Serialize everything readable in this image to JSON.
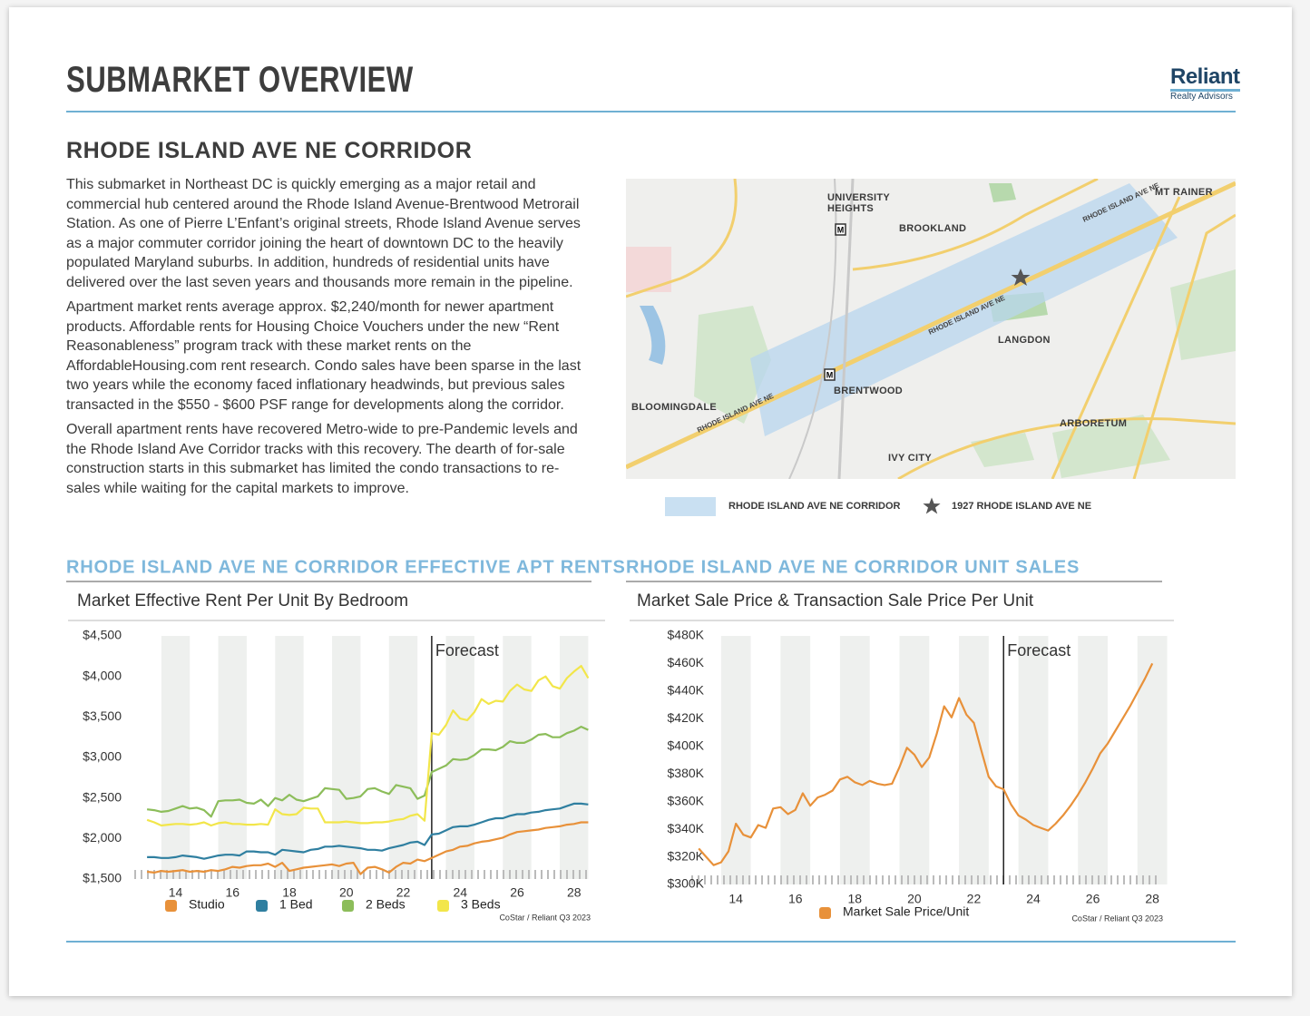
{
  "header": {
    "title": "SUBMARKET OVERVIEW",
    "logo": "Reliant",
    "logo_sub": "Realty Advisors"
  },
  "section": {
    "title": "RHODE ISLAND AVE NE CORRIDOR",
    "paragraphs": [
      "This submarket in Northeast DC is quickly emerging as a major retail and commercial hub centered around the Rhode Island Avenue-Brentwood Metrorail Station. As one of Pierre L’Enfant’s original streets, Rhode Island Avenue serves as a major commuter corridor joining the heart of downtown DC to the heavily populated Maryland suburbs. In addition, hundreds of residential units have delivered over the last seven years and thousands more remain in the pipeline.",
      "Apartment market rents average approx. $2,240/month for newer apartment products. Affordable rents for Housing Choice Vouchers under the new “Rent Reasonableness” program track with these market rents on the AffordableHousing.com rent research. Condo sales have been sparse in the last two years while the economy faced inflationary headwinds, but previous sales transacted in the $550 - $600 PSF range for developments along the corridor.",
      "Overall apartment rents have recovered Metro-wide to pre-Pandemic levels and the Rhode Island Ave Corridor tracks with this recovery. The dearth of for-sale construction starts in this submarket has limited the condo transactions to re-sales while waiting for the capital markets to improve."
    ]
  },
  "map": {
    "labels": [
      "UNIVERSITY HEIGHTS",
      "BROOKLAND",
      "MT RAINER",
      "LANGDON",
      "BRENTWOOD",
      "BLOOMINGDALE",
      "ARBORETUM",
      "IVY CITY"
    ],
    "road_labels": [
      "RHODE ISLAND AVE NE",
      "RHODE ISLAND AVE NE",
      "RHODE ISLAND AVE NE"
    ],
    "legend": [
      "RHODE ISLAND AVE NE CORRIDOR",
      "1927 RHODE ISLAND AVE NE"
    ]
  },
  "chart_data": [
    {
      "type": "line",
      "title": "RHODE ISLAND AVE NE CORRIDOR EFFECTIVE APT RENTS",
      "subtitle": "Market Effective Rent Per Unit By Bedroom",
      "annotation": {
        "text": "Forecast",
        "x": 23
      },
      "source": "CoStar / Reliant Q3 2023",
      "x_bands": true,
      "x": [
        13,
        13.25,
        13.5,
        13.75,
        14,
        14.25,
        14.5,
        14.75,
        15,
        15.25,
        15.5,
        15.75,
        16,
        16.25,
        16.5,
        16.75,
        17,
        17.25,
        17.5,
        17.75,
        18,
        18.25,
        18.5,
        18.75,
        19,
        19.25,
        19.5,
        19.75,
        20,
        20.25,
        20.5,
        20.75,
        21,
        21.25,
        21.5,
        21.75,
        22,
        22.25,
        22.5,
        22.75,
        23,
        23.25,
        23.5,
        23.75,
        24,
        24.25,
        24.5,
        24.75,
        25,
        25.25,
        25.5,
        25.75,
        26,
        26.25,
        26.5,
        26.75,
        27,
        27.25,
        27.5,
        27.75,
        28,
        28.25,
        28.5
      ],
      "series": [
        {
          "name": "Studio",
          "color": "#e8913a",
          "values": [
            1590,
            1580,
            1600,
            1590,
            1600,
            1610,
            1590,
            1600,
            1590,
            1610,
            1600,
            1620,
            1650,
            1640,
            1660,
            1670,
            1670,
            1690,
            1650,
            1700,
            1600,
            1620,
            1640,
            1650,
            1660,
            1670,
            1680,
            1660,
            1690,
            1700,
            1560,
            1640,
            1650,
            1620,
            1580,
            1650,
            1700,
            1690,
            1740,
            1720,
            1760,
            1800,
            1840,
            1860,
            1900,
            1910,
            1940,
            1960,
            1970,
            1990,
            2010,
            2050,
            2080,
            2090,
            2100,
            2110,
            2130,
            2140,
            2150,
            2170,
            2180,
            2200,
            2200
          ]
        },
        {
          "name": "1 Bed",
          "color": "#2f7fa0",
          "values": [
            1770,
            1770,
            1760,
            1760,
            1770,
            1790,
            1780,
            1770,
            1750,
            1770,
            1790,
            1800,
            1800,
            1790,
            1840,
            1840,
            1830,
            1830,
            1800,
            1860,
            1850,
            1840,
            1830,
            1860,
            1870,
            1900,
            1900,
            1910,
            1900,
            1890,
            1880,
            1860,
            1860,
            1850,
            1880,
            1900,
            1920,
            1950,
            1960,
            1920,
            2050,
            2060,
            2100,
            2140,
            2150,
            2150,
            2170,
            2200,
            2230,
            2250,
            2250,
            2280,
            2300,
            2300,
            2320,
            2330,
            2350,
            2360,
            2370,
            2400,
            2430,
            2430,
            2420
          ]
        },
        {
          "name": "2 Beds",
          "color": "#8cbd5a",
          "values": [
            2360,
            2350,
            2330,
            2340,
            2370,
            2400,
            2370,
            2380,
            2350,
            2270,
            2460,
            2470,
            2470,
            2480,
            2440,
            2430,
            2480,
            2400,
            2500,
            2470,
            2540,
            2480,
            2460,
            2490,
            2520,
            2620,
            2610,
            2600,
            2490,
            2500,
            2520,
            2610,
            2620,
            2580,
            2550,
            2660,
            2640,
            2620,
            2490,
            2530,
            2820,
            2860,
            2900,
            2980,
            2970,
            2980,
            3030,
            3100,
            3100,
            3090,
            3130,
            3200,
            3180,
            3180,
            3220,
            3280,
            3290,
            3250,
            3250,
            3300,
            3330,
            3380,
            3340
          ]
        },
        {
          "name": "3 Beds",
          "color": "#f2e64a",
          "values": [
            2230,
            2200,
            2160,
            2170,
            2180,
            2180,
            2170,
            2180,
            2200,
            2160,
            2190,
            2200,
            2180,
            2180,
            2170,
            2170,
            2180,
            2170,
            2360,
            2300,
            2290,
            2300,
            2380,
            2370,
            2370,
            2200,
            2200,
            2200,
            2210,
            2200,
            2190,
            2190,
            2200,
            2200,
            2210,
            2230,
            2240,
            2280,
            2300,
            2220,
            3300,
            3280,
            3400,
            3580,
            3480,
            3460,
            3560,
            3720,
            3660,
            3700,
            3690,
            3820,
            3900,
            3840,
            3820,
            3950,
            4000,
            3880,
            3850,
            3980,
            4060,
            4130,
            3980
          ]
        }
      ],
      "xlim": [
        12.55,
        28.55
      ],
      "xticks": [
        14,
        16,
        18,
        20,
        22,
        24,
        26,
        28
      ],
      "ylim": [
        1500,
        4500
      ],
      "yticks": [
        {
          "value": 1500,
          "label": "$1,500"
        },
        {
          "value": 2000,
          "label": "$2,000"
        },
        {
          "value": 2500,
          "label": "$2,500"
        },
        {
          "value": 3000,
          "label": "$3,000"
        },
        {
          "value": 3500,
          "label": "$3,500"
        },
        {
          "value": 4000,
          "label": "$4,000"
        },
        {
          "value": 4500,
          "label": "$4,500"
        }
      ]
    },
    {
      "type": "line",
      "title": "RHODE ISLAND AVE NE CORRIDOR UNIT SALES",
      "subtitle": "Market Sale Price & Transaction Sale Price Per Unit",
      "annotation": {
        "text": "Forecast",
        "x": 23
      },
      "source": "CoStar / Reliant Q3 2023",
      "x_bands": true,
      "x": [
        12.75,
        13,
        13.25,
        13.5,
        13.75,
        14,
        14.25,
        14.5,
        14.75,
        15,
        15.25,
        15.5,
        15.75,
        16,
        16.25,
        16.5,
        16.75,
        17,
        17.25,
        17.5,
        17.75,
        18,
        18.25,
        18.5,
        18.75,
        19,
        19.25,
        19.5,
        19.75,
        20,
        20.25,
        20.5,
        20.75,
        21,
        21.25,
        21.5,
        21.75,
        22,
        22.25,
        22.5,
        22.75,
        23,
        23.25,
        23.5,
        23.75,
        24,
        24.25,
        24.5,
        24.75,
        25,
        25.25,
        25.5,
        25.75,
        26,
        26.25,
        26.5,
        26.75,
        27,
        27.25,
        27.5,
        27.75,
        28
      ],
      "series": [
        {
          "name": "Market Sale Price/Unit",
          "color": "#e8913a",
          "values": [
            326000,
            320000,
            314000,
            316000,
            324000,
            344000,
            336000,
            334000,
            343000,
            341000,
            355000,
            356000,
            351000,
            354000,
            366000,
            357000,
            363000,
            365000,
            368000,
            376000,
            378000,
            374000,
            372000,
            375000,
            373000,
            372000,
            373000,
            385000,
            399000,
            394000,
            385000,
            392000,
            409000,
            429000,
            421000,
            435000,
            423000,
            417000,
            397000,
            378000,
            371000,
            369000,
            358000,
            350000,
            347000,
            343000,
            341000,
            339000,
            344000,
            350000,
            357000,
            365000,
            374000,
            384000,
            395000,
            402000,
            411000,
            420000,
            429000,
            439000,
            449000,
            460000
          ]
        }
      ],
      "xlim": [
        12.5,
        28.3
      ],
      "xticks": [
        14,
        16,
        18,
        20,
        22,
        24,
        26,
        28
      ],
      "ylim": [
        300000,
        480000
      ],
      "yticks": [
        {
          "value": 300000,
          "label": "$300K"
        },
        {
          "value": 320000,
          "label": "$320K"
        },
        {
          "value": 340000,
          "label": "$340K"
        },
        {
          "value": 360000,
          "label": "$360K"
        },
        {
          "value": 380000,
          "label": "$380K"
        },
        {
          "value": 400000,
          "label": "$400K"
        },
        {
          "value": 420000,
          "label": "$420K"
        },
        {
          "value": 440000,
          "label": "$440K"
        },
        {
          "value": 460000,
          "label": "$460K"
        },
        {
          "value": 480000,
          "label": "$480K"
        }
      ]
    }
  ]
}
